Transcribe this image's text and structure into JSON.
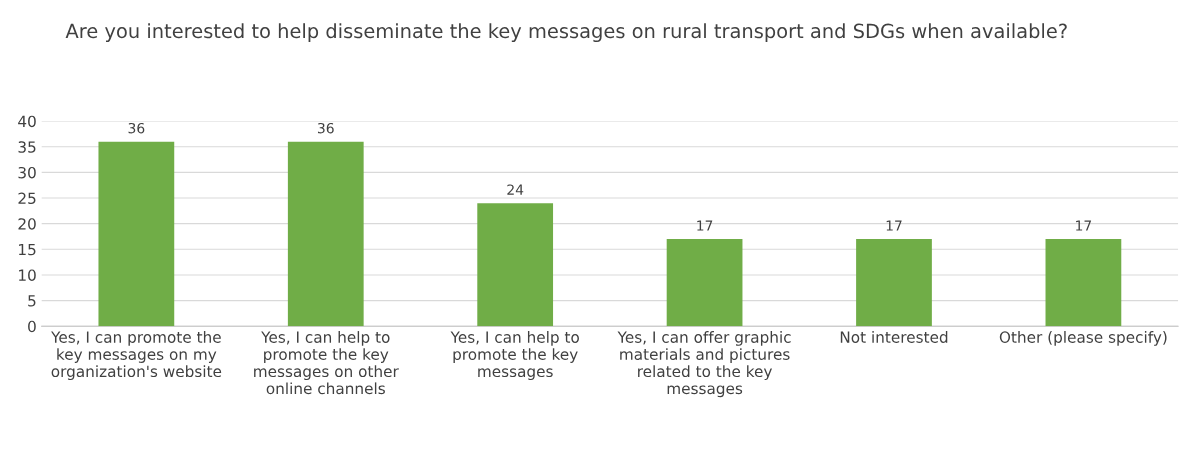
{
  "chart_data": {
    "type": "bar",
    "title": "Are you interested to help disseminate the key messages on rural transport and SDGs when available?",
    "categories": [
      "Yes, I can promote the\nkey messages on my\norganization's website",
      "Yes, I can help to\npromote the key\nmessages on other\nonline channels",
      "Yes, I can help to\npromote the key\nmessages",
      "Yes, I can offer graphic\nmaterials and pictures\nrelated to the key\nmessages",
      "Not interested",
      "Other (please specify)"
    ],
    "values": [
      36,
      36,
      24,
      17,
      17,
      17
    ],
    "color": "#70ad47",
    "ylim": [
      0,
      40
    ],
    "yticks": [
      0,
      5,
      10,
      15,
      20,
      25,
      30,
      35,
      40
    ],
    "grid": "y",
    "data_labels": true
  }
}
